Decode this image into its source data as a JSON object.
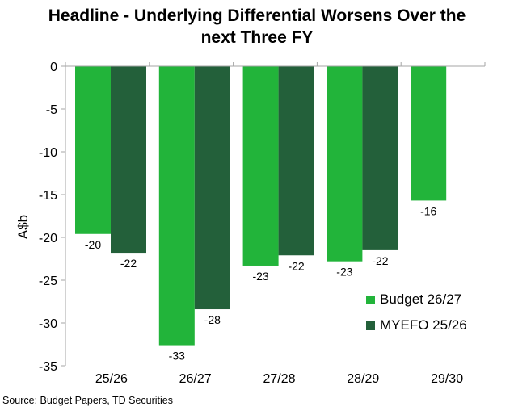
{
  "title_line1": "Headline - Underlying Differential Worsens Over the",
  "title_line2": "next Three FY",
  "source": "Source: Budget Papers, TD Securities",
  "chart_data": {
    "type": "bar",
    "title": "Headline - Underlying Differential Worsens Over the next Three FY",
    "ylabel": "A$b",
    "xlabel": "",
    "ylim": [
      -35,
      0
    ],
    "yticks": [
      0,
      -5,
      -10,
      -15,
      -20,
      -25,
      -30,
      -35
    ],
    "categories": [
      "25/26",
      "26/27",
      "27/28",
      "28/29",
      "29/30"
    ],
    "series": [
      {
        "name": "Budget 26/27",
        "color": "#22b43a",
        "values": [
          -19.6,
          -32.6,
          -23.3,
          -22.8,
          -15.7
        ],
        "labels": [
          "-20",
          "-33",
          "-23",
          "-23",
          "-16"
        ]
      },
      {
        "name": "MYEFO 25/26",
        "color": "#23603a",
        "values": [
          -21.8,
          -28.4,
          -22.1,
          -21.5,
          null
        ],
        "labels": [
          "-22",
          "-28",
          "-22",
          "-22",
          ""
        ]
      }
    ],
    "legend_position": "bottom-right",
    "grid": false
  }
}
